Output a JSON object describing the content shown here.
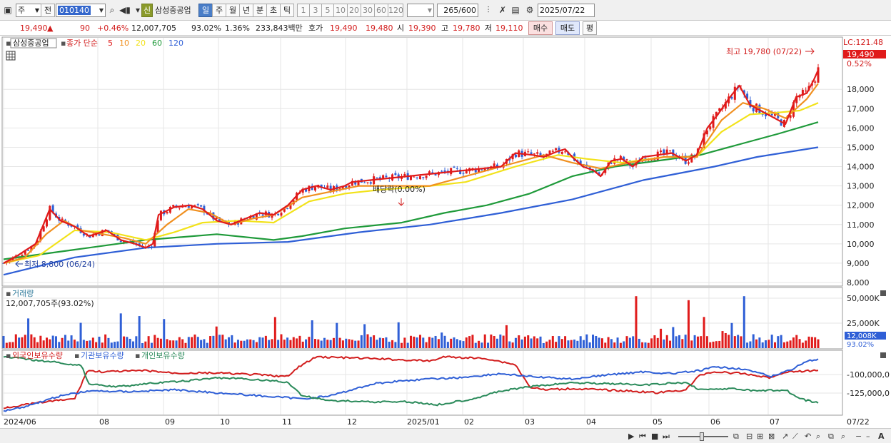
{
  "toolbar": {
    "type_value": "주",
    "prev_label": "전",
    "code_value": "010140",
    "new_badge": "신",
    "stock_name": "삼성중공업",
    "period_tabs": [
      "일",
      "주",
      "월",
      "년",
      "분",
      "초",
      "틱"
    ],
    "selected_period": "일",
    "intervals": [
      "1",
      "3",
      "5",
      "10",
      "20",
      "30",
      "60",
      "120"
    ],
    "count_value": "265",
    "count_max": "/600",
    "date_value": "2025/07/22"
  },
  "quote": {
    "price": "19,490",
    "change_arrow": "▲",
    "change": "90",
    "change_pct": "+0.46%",
    "volume": "12,007,705",
    "vol_ratio": "93.02%",
    "turnover": "1.36%",
    "amount": "233,843백만",
    "hoga_label": "호가",
    "ask": "19,490",
    "bid": "19,480",
    "open_label": "시",
    "open": "19,390",
    "high_label": "고",
    "high": "19,780",
    "low_label": "저",
    "low": "19,110",
    "buy_label": "매수",
    "sell_label": "매도",
    "eval_label": "평"
  },
  "legend": {
    "name": "삼성중공업",
    "desc": "종가 단순",
    "mas": [
      {
        "label": "5",
        "color": "#e01b1b"
      },
      {
        "label": "10",
        "color": "#f09020"
      },
      {
        "label": "20",
        "color": "#f2e21a"
      },
      {
        "label": "60",
        "color": "#1f9a3a"
      },
      {
        "label": "120",
        "color": "#2f5fd6"
      }
    ]
  },
  "price_panel": {
    "lc_label": "LC:121.48",
    "last_price_tag": "19,490",
    "last_pct": "0.52%",
    "high_note": "최고 19,780 (07/22)",
    "low_note": "최저 8,800 (06/24)",
    "dividend_note": "배당락(0.00%)",
    "y_ticks": [
      "8,000",
      "9,000",
      "10,000",
      "11,000",
      "12,000",
      "13,000",
      "14,000",
      "15,000",
      "16,000",
      "17,000",
      "18,000"
    ]
  },
  "volume_panel": {
    "title": "거래량",
    "info": "12,007,705주(93.02%)",
    "y_ticks": [
      "25,000K",
      "50,000K"
    ],
    "last_tag": "12,008K",
    "last_pct": "93.02%"
  },
  "holdings_panel": {
    "legend": [
      {
        "label": "외국인보유수량",
        "color": "#d21c1c"
      },
      {
        "label": "기관보유수량",
        "color": "#2f5fd6"
      },
      {
        "label": "개인보유수량",
        "color": "#2a8a5a"
      }
    ],
    "y_ticks": [
      "-100,000,0",
      "-125,000,0"
    ]
  },
  "x_labels": [
    "2024/06",
    "08",
    "09",
    "10",
    "11",
    "12",
    "2025/01",
    "02",
    "03",
    "04",
    "05",
    "06",
    "07",
    "07/22"
  ],
  "chart_data": {
    "type": "candlestick",
    "x_range": [
      "2024/06",
      "2025/07/22"
    ],
    "y_range": [
      8000,
      19780
    ],
    "ma_periods": [
      5,
      10,
      20,
      60,
      120
    ],
    "ma5": [
      [
        0,
        9000
      ],
      [
        20,
        9400
      ],
      [
        45,
        10000
      ],
      [
        65,
        11800
      ],
      [
        80,
        11200
      ],
      [
        100,
        10900
      ],
      [
        120,
        10400
      ],
      [
        145,
        10700
      ],
      [
        165,
        10200
      ],
      [
        185,
        10000
      ],
      [
        200,
        9800
      ],
      [
        210,
        10000
      ],
      [
        218,
        11500
      ],
      [
        240,
        11900
      ],
      [
        262,
        12000
      ],
      [
        280,
        11800
      ],
      [
        300,
        11200
      ],
      [
        320,
        11000
      ],
      [
        340,
        11300
      ],
      [
        360,
        11600
      ],
      [
        380,
        11500
      ],
      [
        400,
        12000
      ],
      [
        420,
        12800
      ],
      [
        440,
        13000
      ],
      [
        460,
        12800
      ],
      [
        480,
        13000
      ],
      [
        490,
        13200
      ],
      [
        700,
        14000
      ],
      [
        720,
        14700
      ],
      [
        745,
        14600
      ],
      [
        760,
        14500
      ],
      [
        780,
        14800
      ],
      [
        790,
        14900
      ],
      [
        800,
        14500
      ],
      [
        815,
        14000
      ],
      [
        830,
        13800
      ],
      [
        840,
        13500
      ],
      [
        855,
        14300
      ],
      [
        870,
        14400
      ],
      [
        885,
        14000
      ],
      [
        900,
        14500
      ],
      [
        920,
        14600
      ],
      [
        940,
        14700
      ],
      [
        960,
        14300
      ],
      [
        975,
        14600
      ],
      [
        990,
        16000
      ],
      [
        1005,
        16700
      ],
      [
        1020,
        17500
      ],
      [
        1035,
        18200
      ],
      [
        1050,
        17200
      ],
      [
        1070,
        16800
      ],
      [
        1085,
        16500
      ],
      [
        1100,
        16200
      ],
      [
        1115,
        17600
      ],
      [
        1130,
        17800
      ],
      [
        1140,
        18500
      ],
      [
        1146,
        19000
      ]
    ],
    "ma10": [
      [
        0,
        9000
      ],
      [
        30,
        9300
      ],
      [
        60,
        10500
      ],
      [
        85,
        11200
      ],
      [
        110,
        10700
      ],
      [
        140,
        10500
      ],
      [
        170,
        10300
      ],
      [
        200,
        10000
      ],
      [
        230,
        11000
      ],
      [
        260,
        11800
      ],
      [
        290,
        11600
      ],
      [
        320,
        11000
      ],
      [
        350,
        11300
      ],
      [
        380,
        11500
      ],
      [
        420,
        12400
      ],
      [
        460,
        12700
      ],
      [
        500,
        13000
      ],
      [
        560,
        13000
      ],
      [
        600,
        13000
      ],
      [
        650,
        13500
      ],
      [
        700,
        14000
      ],
      [
        760,
        14600
      ],
      [
        800,
        14200
      ],
      [
        840,
        13900
      ],
      [
        880,
        14200
      ],
      [
        930,
        14500
      ],
      [
        975,
        14500
      ],
      [
        1010,
        16400
      ],
      [
        1040,
        17300
      ],
      [
        1070,
        17000
      ],
      [
        1100,
        16500
      ],
      [
        1130,
        17500
      ],
      [
        1146,
        18300
      ]
    ],
    "ma20": [
      [
        0,
        9000
      ],
      [
        50,
        9400
      ],
      [
        100,
        10700
      ],
      [
        150,
        10600
      ],
      [
        200,
        10200
      ],
      [
        240,
        10600
      ],
      [
        280,
        11100
      ],
      [
        330,
        11200
      ],
      [
        380,
        11100
      ],
      [
        430,
        12200
      ],
      [
        480,
        12600
      ],
      [
        530,
        12800
      ],
      [
        600,
        13000
      ],
      [
        650,
        13200
      ],
      [
        720,
        14000
      ],
      [
        780,
        14600
      ],
      [
        820,
        14400
      ],
      [
        870,
        14200
      ],
      [
        930,
        14500
      ],
      [
        975,
        14500
      ],
      [
        1010,
        15800
      ],
      [
        1050,
        16700
      ],
      [
        1090,
        16800
      ],
      [
        1120,
        16900
      ],
      [
        1146,
        17300
      ]
    ],
    "ma60": [
      [
        0,
        9200
      ],
      [
        100,
        9700
      ],
      [
        200,
        10200
      ],
      [
        300,
        10500
      ],
      [
        380,
        10200
      ],
      [
        420,
        10400
      ],
      [
        480,
        10800
      ],
      [
        560,
        11100
      ],
      [
        620,
        11600
      ],
      [
        680,
        12000
      ],
      [
        740,
        12600
      ],
      [
        800,
        13500
      ],
      [
        860,
        14000
      ],
      [
        920,
        14300
      ],
      [
        980,
        14600
      ],
      [
        1040,
        15200
      ],
      [
        1090,
        15700
      ],
      [
        1146,
        16300
      ]
    ],
    "ma120": [
      [
        0,
        8400
      ],
      [
        100,
        9300
      ],
      [
        200,
        9800
      ],
      [
        300,
        10000
      ],
      [
        400,
        10100
      ],
      [
        500,
        10600
      ],
      [
        600,
        11000
      ],
      [
        700,
        11600
      ],
      [
        800,
        12300
      ],
      [
        900,
        13300
      ],
      [
        1000,
        14000
      ],
      [
        1060,
        14500
      ],
      [
        1146,
        15000
      ]
    ],
    "foreign_line": [
      [
        0,
        0.9
      ],
      [
        30,
        0.85
      ],
      [
        60,
        0.8
      ],
      [
        100,
        0.75
      ],
      [
        118,
        0.28
      ],
      [
        140,
        0.3
      ],
      [
        200,
        0.28
      ],
      [
        240,
        0.32
      ],
      [
        300,
        0.32
      ],
      [
        360,
        0.35
      ],
      [
        400,
        0.38
      ],
      [
        415,
        0.22
      ],
      [
        440,
        0.05
      ],
      [
        520,
        0.08
      ],
      [
        600,
        0.12
      ],
      [
        620,
        0.05
      ],
      [
        680,
        0.08
      ],
      [
        720,
        0.18
      ],
      [
        740,
        0.55
      ],
      [
        760,
        0.6
      ],
      [
        800,
        0.58
      ],
      [
        840,
        0.6
      ],
      [
        880,
        0.62
      ],
      [
        920,
        0.65
      ],
      [
        960,
        0.6
      ],
      [
        980,
        0.35
      ],
      [
        1000,
        0.3
      ],
      [
        1040,
        0.33
      ],
      [
        1080,
        0.4
      ],
      [
        1100,
        0.3
      ],
      [
        1146,
        0.28
      ]
    ],
    "inst_line": [
      [
        0,
        0.95
      ],
      [
        30,
        0.88
      ],
      [
        80,
        0.7
      ],
      [
        120,
        0.62
      ],
      [
        180,
        0.63
      ],
      [
        240,
        0.6
      ],
      [
        300,
        0.65
      ],
      [
        360,
        0.7
      ],
      [
        420,
        0.75
      ],
      [
        460,
        0.7
      ],
      [
        520,
        0.5
      ],
      [
        560,
        0.45
      ],
      [
        600,
        0.42
      ],
      [
        640,
        0.4
      ],
      [
        700,
        0.33
      ],
      [
        740,
        0.38
      ],
      [
        800,
        0.42
      ],
      [
        850,
        0.35
      ],
      [
        900,
        0.3
      ],
      [
        940,
        0.33
      ],
      [
        980,
        0.28
      ],
      [
        1000,
        0.22
      ],
      [
        1040,
        0.25
      ],
      [
        1080,
        0.38
      ],
      [
        1110,
        0.25
      ],
      [
        1130,
        0.12
      ],
      [
        1146,
        0.1
      ]
    ],
    "retail_line": [
      [
        0,
        0.05
      ],
      [
        40,
        0.1
      ],
      [
        80,
        0.15
      ],
      [
        110,
        0.2
      ],
      [
        120,
        0.5
      ],
      [
        160,
        0.55
      ],
      [
        200,
        0.5
      ],
      [
        260,
        0.45
      ],
      [
        300,
        0.4
      ],
      [
        340,
        0.42
      ],
      [
        380,
        0.45
      ],
      [
        400,
        0.48
      ],
      [
        420,
        0.7
      ],
      [
        460,
        0.78
      ],
      [
        520,
        0.8
      ],
      [
        570,
        0.8
      ],
      [
        610,
        0.85
      ],
      [
        660,
        0.75
      ],
      [
        700,
        0.62
      ],
      [
        740,
        0.55
      ],
      [
        800,
        0.48
      ],
      [
        860,
        0.5
      ],
      [
        900,
        0.52
      ],
      [
        960,
        0.48
      ],
      [
        980,
        0.6
      ],
      [
        1020,
        0.58
      ],
      [
        1060,
        0.62
      ],
      [
        1100,
        0.6
      ],
      [
        1120,
        0.75
      ],
      [
        1146,
        0.82
      ]
    ]
  }
}
